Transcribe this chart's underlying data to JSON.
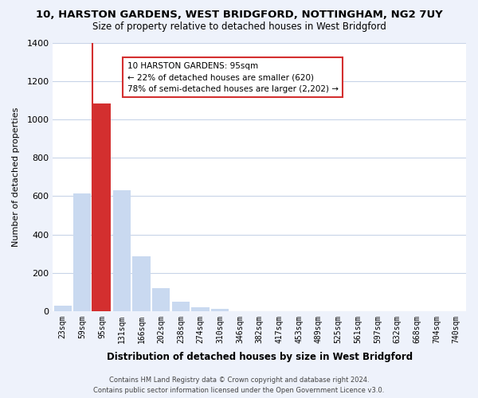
{
  "title": "10, HARSTON GARDENS, WEST BRIDGFORD, NOTTINGHAM, NG2 7UY",
  "subtitle": "Size of property relative to detached houses in West Bridgford",
  "xlabel": "Distribution of detached houses by size in West Bridgford",
  "ylabel": "Number of detached properties",
  "bin_labels": [
    "23sqm",
    "59sqm",
    "95sqm",
    "131sqm",
    "166sqm",
    "202sqm",
    "238sqm",
    "274sqm",
    "310sqm",
    "346sqm",
    "382sqm",
    "417sqm",
    "453sqm",
    "489sqm",
    "525sqm",
    "561sqm",
    "597sqm",
    "632sqm",
    "668sqm",
    "704sqm",
    "740sqm"
  ],
  "bar_values": [
    30,
    615,
    1085,
    630,
    285,
    118,
    47,
    20,
    13,
    0,
    0,
    0,
    0,
    0,
    0,
    0,
    0,
    0,
    0,
    0,
    0
  ],
  "bar_color": "#c9d9f0",
  "highlight_bar_index": 2,
  "highlight_color": "#d32f2f",
  "highlight_line_color": "#d32f2f",
  "ylim": [
    0,
    1400
  ],
  "yticks": [
    0,
    200,
    400,
    600,
    800,
    1000,
    1200,
    1400
  ],
  "annotation_title": "10 HARSTON GARDENS: 95sqm",
  "annotation_line1": "← 22% of detached houses are smaller (620)",
  "annotation_line2": "78% of semi-detached houses are larger (2,202) →",
  "annotation_box_color": "#ffffff",
  "annotation_box_edgecolor": "#d32f2f",
  "footer_line1": "Contains HM Land Registry data © Crown copyright and database right 2024.",
  "footer_line2": "Contains public sector information licensed under the Open Government Licence v3.0.",
  "bg_color": "#eef2fb",
  "plot_bg_color": "#ffffff",
  "grid_color": "#c8d4e8"
}
